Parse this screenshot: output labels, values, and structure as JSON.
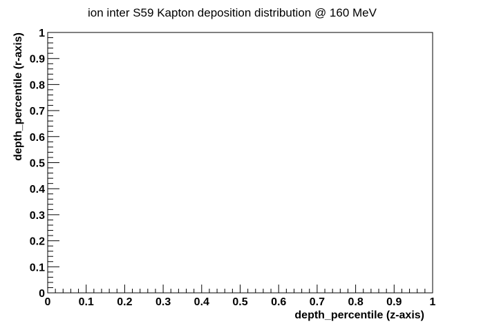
{
  "chart_data": {
    "type": "scatter",
    "title": "ion inter S59 Kapton deposition distribution @ 160 MeV",
    "xlabel": "depth_percentile (z-axis)",
    "ylabel": "depth_percentile (r-axis)",
    "xlim": [
      0,
      1
    ],
    "ylim": [
      0,
      1
    ],
    "x_ticks": [
      "0",
      "0.1",
      "0.2",
      "0.3",
      "0.4",
      "0.5",
      "0.6",
      "0.7",
      "0.8",
      "0.9",
      "1"
    ],
    "y_ticks": [
      "0",
      "0.1",
      "0.2",
      "0.3",
      "0.4",
      "0.5",
      "0.6",
      "0.7",
      "0.8",
      "0.9",
      "1"
    ],
    "grid": false,
    "series": []
  }
}
